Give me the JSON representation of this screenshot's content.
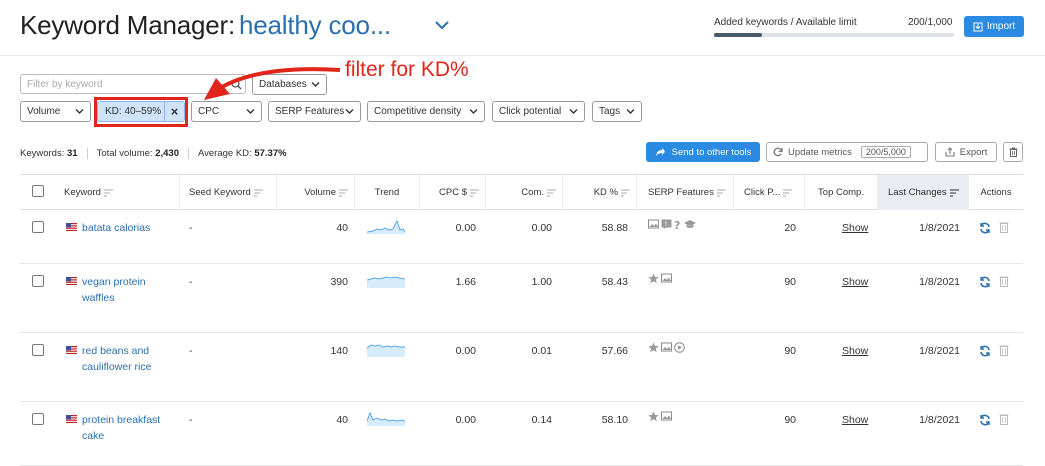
{
  "header": {
    "title": "Keyword Manager:",
    "project": "healthy coo...",
    "limit_label": "Added keywords / Available limit",
    "limit_count": "200/1,000",
    "limit_fraction": 0.2,
    "import_label": "Import"
  },
  "filters": {
    "keyword_placeholder": "Filter by keyword",
    "databases": "Databases",
    "volume": "Volume",
    "kd_chip": "KD: 40–59%",
    "kd_remove": "×",
    "cpc": "CPC",
    "serp": "SERP Features",
    "competitive": "Competitive density",
    "click_potential": "Click potential",
    "tags": "Tags"
  },
  "annotation": "filter for KD%",
  "summary": {
    "keywords_label": "Keywords:",
    "keywords_value": "31",
    "volume_label": "Total volume:",
    "volume_value": "2,430",
    "kd_label": "Average KD:",
    "kd_value": "57.37%"
  },
  "actions": {
    "send": "Send to other tools",
    "update": "Update metrics",
    "update_count": "200/5,000",
    "export": "Export"
  },
  "columns": {
    "keyword": "Keyword",
    "seed": "Seed Keyword",
    "volume": "Volume",
    "trend": "Trend",
    "cpc": "CPC $",
    "com": "Com.",
    "kd": "KD %",
    "serp": "SERP Features",
    "click": "Click P...",
    "top": "Top Comp.",
    "last": "Last Changes",
    "actions": "Actions"
  },
  "rows": [
    {
      "keyword": "batata calorias",
      "seed": "-",
      "volume": "40",
      "cpc": "0.00",
      "com": "0.00",
      "kd": "58.88",
      "serp_icons": [
        "image-icon",
        "reviews-icon",
        "question-icon",
        "graduation-icon"
      ],
      "click": "20",
      "top": "Show",
      "last": "1/8/2021"
    },
    {
      "keyword": "vegan protein waffles",
      "seed": "-",
      "volume": "390",
      "cpc": "1.66",
      "com": "1.00",
      "kd": "58.43",
      "serp_icons": [
        "star-icon",
        "image-icon"
      ],
      "click": "90",
      "top": "Show",
      "last": "1/8/2021"
    },
    {
      "keyword": "red beans and cauliflower rice",
      "seed": "-",
      "volume": "140",
      "cpc": "0.00",
      "com": "0.01",
      "kd": "57.66",
      "serp_icons": [
        "star-icon",
        "image-icon",
        "video-icon"
      ],
      "click": "90",
      "top": "Show",
      "last": "1/8/2021"
    },
    {
      "keyword": "protein breakfast cake",
      "seed": "-",
      "volume": "40",
      "cpc": "0.00",
      "com": "0.14",
      "kd": "58.10",
      "serp_icons": [
        "star-icon",
        "image-icon"
      ],
      "click": "90",
      "top": "Show",
      "last": "1/8/2021"
    }
  ],
  "colors": {
    "accent": "#2b8ae2",
    "link": "#2a6fb0",
    "annotation": "#e0251b"
  }
}
